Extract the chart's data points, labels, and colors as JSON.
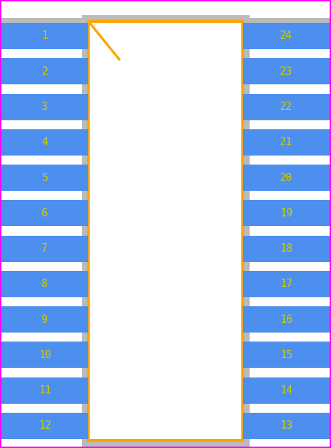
{
  "background_color": "#ffffff",
  "outer_border_color": "#ff00ff",
  "pad_color": "#4d8fef",
  "pad_text_color": "#cccc00",
  "body_border_color": "#ffa500",
  "body_fill_color": "#ffffff",
  "courtyard_color": "#bbbbbb",
  "pin1_marker_color": "#ffa500",
  "num_pins_per_side": 12,
  "left_pins": [
    1,
    2,
    3,
    4,
    5,
    6,
    7,
    8,
    9,
    10,
    11,
    12
  ],
  "right_pins": [
    24,
    23,
    22,
    21,
    20,
    19,
    18,
    17,
    16,
    15,
    14,
    13
  ],
  "fig_width": 4.8,
  "fig_height": 6.48,
  "dpi": 100
}
